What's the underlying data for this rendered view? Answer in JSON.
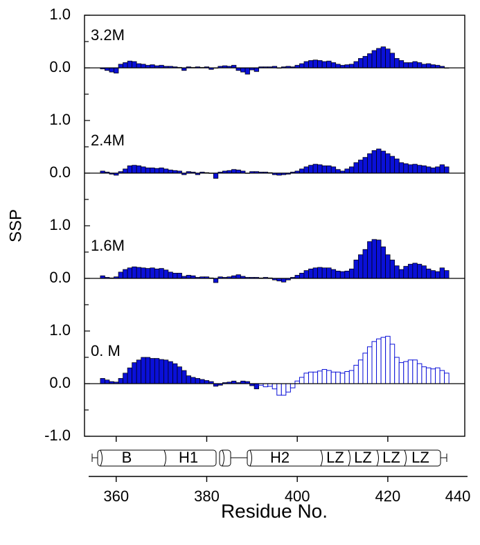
{
  "chart_data": {
    "type": "bar",
    "y_label": "SSP",
    "x_label": "Residue No.",
    "x": [
      357,
      358,
      359,
      360,
      361,
      362,
      363,
      364,
      365,
      366,
      367,
      368,
      369,
      370,
      371,
      372,
      373,
      374,
      375,
      376,
      377,
      378,
      379,
      380,
      381,
      382,
      383,
      384,
      385,
      386,
      387,
      388,
      389,
      390,
      391,
      392,
      393,
      394,
      395,
      396,
      397,
      398,
      399,
      400,
      401,
      402,
      403,
      404,
      405,
      406,
      407,
      408,
      409,
      410,
      411,
      412,
      413,
      414,
      415,
      416,
      417,
      418,
      419,
      420,
      421,
      422,
      423,
      424,
      425,
      426,
      427,
      428,
      429,
      430,
      431,
      432,
      433
    ],
    "xlim": [
      353,
      437
    ],
    "xticks": [
      360,
      380,
      400,
      420,
      440
    ],
    "domain_labels": [
      "B",
      "H1",
      "H2",
      "LZ",
      "LZ",
      "LZ",
      "LZ"
    ],
    "panels": [
      {
        "label": "3.2M",
        "ylim": [
          -1,
          1
        ],
        "yticks": [
          {
            "value": 1,
            "label": "1.0"
          },
          {
            "value": 0,
            "label": "0.0"
          }
        ],
        "yminorticks": [
          0.5,
          -0.5
        ],
        "series": [
          {
            "color": "#0a10d8",
            "fill": "solid",
            "values": [
              -0.02,
              -0.05,
              -0.08,
              -0.1,
              0.07,
              0.1,
              0.13,
              0.12,
              0.08,
              0.07,
              0.05,
              0.06,
              0.04,
              0.05,
              0.03,
              0.03,
              0.02,
              0.01,
              -0.05,
              0.02,
              0.01,
              0.02,
              0.01,
              0.02,
              -0.03,
              0.0,
              0.03,
              0.04,
              0.03,
              0.05,
              -0.05,
              -0.08,
              -0.12,
              -0.04,
              -0.07,
              0.02,
              0.02,
              0.02,
              0.03,
              0.0,
              0.02,
              0.03,
              0.02,
              0.05,
              0.08,
              0.12,
              0.14,
              0.15,
              0.14,
              0.12,
              0.13,
              0.1,
              0.07,
              0.05,
              0.06,
              0.07,
              0.12,
              0.18,
              0.22,
              0.27,
              0.33,
              0.37,
              0.4,
              0.36,
              0.28,
              0.18,
              0.14,
              0.1,
              0.1,
              0.12,
              0.1,
              0.07,
              0.08,
              0.06,
              0.05,
              0.03,
              0.0
            ]
          }
        ]
      },
      {
        "label": "2.4M",
        "ylim": [
          -1,
          1
        ],
        "yticks": [
          {
            "value": 1,
            "label": "1.0"
          },
          {
            "value": 0,
            "label": "0.0"
          }
        ],
        "yminorticks": [
          0.5,
          -0.5
        ],
        "series": [
          {
            "color": "#0a10d8",
            "fill": "solid",
            "values": [
              0.04,
              0.02,
              -0.02,
              -0.04,
              0.03,
              0.08,
              0.14,
              0.15,
              0.14,
              0.12,
              0.1,
              0.1,
              0.09,
              0.1,
              0.08,
              0.06,
              0.05,
              0.04,
              -0.03,
              0.03,
              0.02,
              -0.03,
              0.02,
              0.01,
              0.0,
              -0.1,
              0.02,
              0.04,
              0.05,
              0.07,
              0.06,
              0.04,
              0.0,
              0.03,
              0.03,
              0.02,
              0.02,
              0.01,
              -0.03,
              -0.04,
              -0.03,
              -0.02,
              0.02,
              0.04,
              0.08,
              0.12,
              0.15,
              0.17,
              0.16,
              0.14,
              0.14,
              0.12,
              0.07,
              0.04,
              0.08,
              0.12,
              0.2,
              0.25,
              0.3,
              0.37,
              0.43,
              0.46,
              0.42,
              0.37,
              0.32,
              0.27,
              0.2,
              0.18,
              0.16,
              0.17,
              0.15,
              0.14,
              0.12,
              0.1,
              0.12,
              0.16,
              0.12
            ]
          }
        ]
      },
      {
        "label": "1.6M",
        "ylim": [
          -1,
          1
        ],
        "yticks": [
          {
            "value": 1,
            "label": "1.0"
          },
          {
            "value": 0,
            "label": "0.0"
          }
        ],
        "yminorticks": [
          0.5,
          -0.5
        ],
        "series": [
          {
            "color": "#0a10d8",
            "fill": "solid",
            "values": [
              0.05,
              0.02,
              0.01,
              0.03,
              0.12,
              0.17,
              0.2,
              0.22,
              0.21,
              0.2,
              0.19,
              0.2,
              0.18,
              0.19,
              0.16,
              0.12,
              0.1,
              0.1,
              0.04,
              0.06,
              0.05,
              0.02,
              0.03,
              0.03,
              0.01,
              -0.08,
              0.03,
              0.02,
              0.03,
              0.05,
              0.07,
              0.04,
              0.02,
              0.02,
              0.02,
              0.01,
              0.02,
              0.01,
              -0.03,
              -0.05,
              -0.07,
              -0.03,
              0.02,
              0.06,
              0.1,
              0.15,
              0.18,
              0.2,
              0.21,
              0.2,
              0.2,
              0.17,
              0.14,
              0.13,
              0.14,
              0.18,
              0.35,
              0.45,
              0.55,
              0.7,
              0.74,
              0.73,
              0.6,
              0.45,
              0.35,
              0.24,
              0.17,
              0.23,
              0.27,
              0.29,
              0.27,
              0.24,
              0.18,
              0.15,
              0.13,
              0.2,
              0.15
            ]
          }
        ]
      },
      {
        "label": "0. M",
        "ylim": [
          -1,
          1
        ],
        "yticks": [
          {
            "value": 1,
            "label": "1.0"
          },
          {
            "value": 0,
            "label": "0.0"
          },
          {
            "value": -1,
            "label": "-1.0"
          }
        ],
        "yminorticks": [
          0.5,
          -0.5
        ],
        "series": [
          {
            "color": "#0a10d8",
            "fill": "solid",
            "values": [
              0.1,
              0.07,
              0.04,
              0.03,
              0.1,
              0.2,
              0.3,
              0.4,
              0.45,
              0.5,
              0.5,
              0.48,
              0.48,
              0.46,
              0.45,
              0.42,
              0.38,
              0.32,
              0.25,
              0.15,
              0.12,
              0.1,
              0.08,
              0.06,
              0.04,
              -0.05,
              -0.03,
              0.02,
              0.03,
              0.05,
              0.02,
              0.05,
              0.04,
              -0.04,
              -0.1,
              null,
              null,
              null,
              null,
              null,
              null,
              null,
              null,
              null,
              null,
              null,
              null,
              null,
              null,
              null,
              null,
              null,
              null,
              null,
              null,
              null,
              null,
              null,
              null,
              null,
              null,
              null,
              null,
              null,
              null,
              null,
              null,
              null,
              null,
              null,
              null,
              null,
              null,
              null,
              null,
              null,
              null
            ]
          },
          {
            "color": "#0a10d8",
            "fill": "open",
            "values": [
              null,
              null,
              null,
              null,
              null,
              null,
              null,
              null,
              null,
              null,
              null,
              null,
              null,
              null,
              null,
              null,
              null,
              null,
              null,
              null,
              null,
              null,
              null,
              null,
              null,
              null,
              null,
              null,
              null,
              null,
              null,
              null,
              null,
              null,
              null,
              -0.03,
              -0.06,
              -0.05,
              -0.1,
              -0.22,
              -0.22,
              -0.16,
              -0.08,
              0.05,
              0.12,
              0.2,
              0.22,
              0.22,
              0.24,
              0.27,
              0.25,
              0.22,
              0.22,
              0.2,
              0.23,
              0.25,
              0.35,
              0.45,
              0.58,
              0.7,
              0.8,
              0.85,
              0.88,
              0.9,
              0.75,
              0.5,
              0.4,
              0.42,
              0.45,
              0.45,
              0.38,
              0.32,
              0.3,
              0.28,
              0.3,
              0.25,
              0.2
            ]
          }
        ]
      }
    ]
  }
}
